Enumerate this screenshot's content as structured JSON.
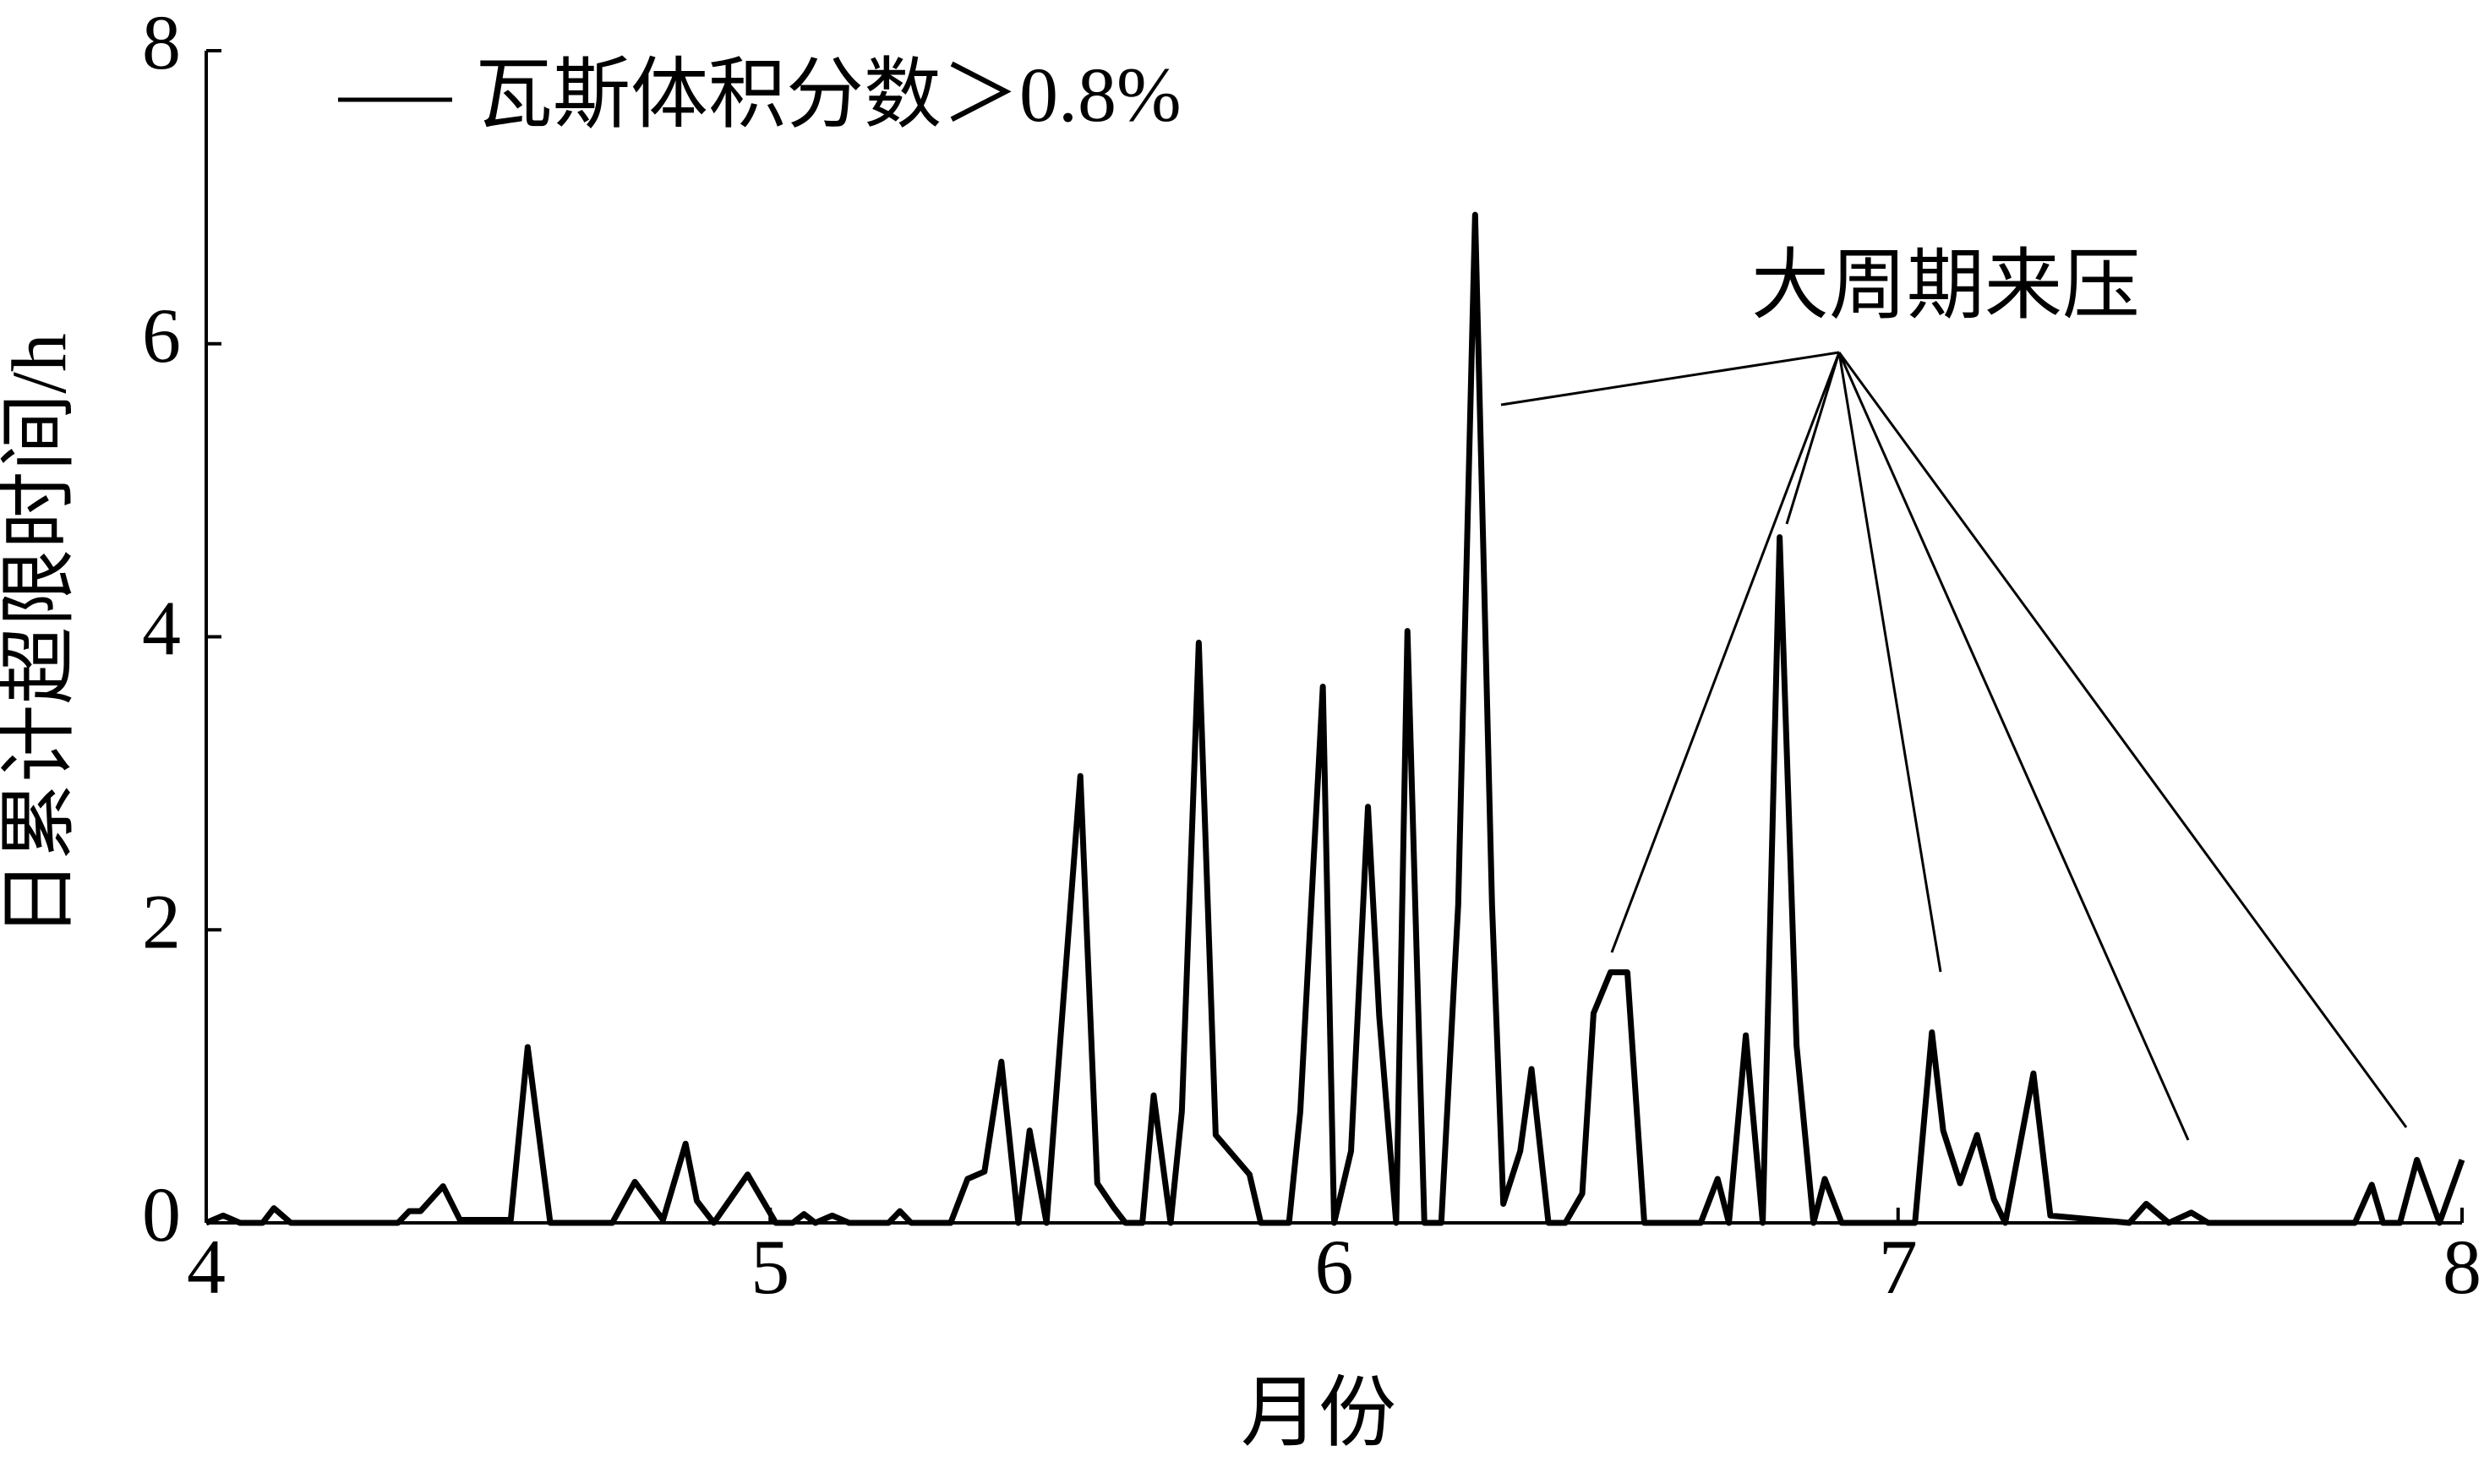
{
  "chart_data": {
    "type": "line",
    "ylabel": "日累计超限时间/h",
    "xlabel": "月份",
    "annotation": "大周期来压",
    "xlim": [
      4,
      8
    ],
    "ylim": [
      0,
      8
    ],
    "xticks": [
      4,
      5,
      6,
      7,
      8
    ],
    "yticks": [
      0,
      2,
      4,
      6,
      8
    ],
    "x": [
      4.0,
      4.03,
      4.06,
      4.1,
      4.12,
      4.15,
      4.34,
      4.36,
      4.38,
      4.42,
      4.45,
      4.54,
      4.57,
      4.61,
      4.72,
      4.76,
      4.81,
      4.85,
      4.87,
      4.9,
      4.96,
      5.01,
      5.04,
      5.06,
      5.08,
      5.11,
      5.14,
      5.21,
      5.23,
      5.25,
      5.32,
      5.35,
      5.38,
      5.41,
      5.44,
      5.46,
      5.49,
      5.55,
      5.58,
      5.61,
      5.63,
      5.66,
      5.68,
      5.71,
      5.73,
      5.76,
      5.79,
      5.85,
      5.87,
      5.92,
      5.94,
      5.98,
      6.0,
      6.03,
      6.06,
      6.08,
      6.11,
      6.13,
      6.16,
      6.19,
      6.22,
      6.25,
      6.28,
      6.3,
      6.33,
      6.35,
      6.38,
      6.41,
      6.44,
      6.46,
      6.49,
      6.52,
      6.55,
      6.65,
      6.68,
      6.7,
      6.73,
      6.76,
      6.79,
      6.82,
      6.85,
      6.87,
      6.9,
      7.03,
      7.06,
      7.08,
      7.11,
      7.14,
      7.17,
      7.19,
      7.24,
      7.27,
      7.41,
      7.44,
      7.48,
      7.52,
      7.55,
      7.81,
      7.84,
      7.86,
      7.89,
      7.92,
      7.96,
      8.0
    ],
    "series": [
      {
        "name": "瓦斯体积分数＞0.8%",
        "color": "#000000",
        "values": [
          0,
          0.05,
          0,
          0,
          0.1,
          0,
          0,
          0.08,
          0.08,
          0.25,
          0.02,
          0.02,
          1.2,
          0,
          0,
          0.28,
          0.02,
          0.54,
          0.15,
          0,
          0.33,
          0,
          0,
          0.06,
          0,
          0.05,
          0,
          0,
          0.08,
          0,
          0,
          0.3,
          0.35,
          1.1,
          0,
          0.63,
          0,
          3.05,
          0.27,
          0.1,
          0,
          0,
          0.87,
          0,
          0.76,
          3.96,
          0.6,
          0.33,
          0,
          0,
          0.76,
          3.66,
          0,
          0.49,
          2.84,
          1.41,
          0,
          4.04,
          0,
          0,
          2.17,
          6.88,
          2.17,
          0.13,
          0.49,
          1.05,
          0,
          0,
          0.2,
          1.43,
          1.71,
          1.71,
          0,
          0,
          0.3,
          0,
          1.28,
          0,
          4.68,
          1.21,
          0,
          0.3,
          0,
          0,
          1.3,
          0.63,
          0.27,
          0.6,
          0.16,
          0,
          1.02,
          0.05,
          0,
          0.13,
          0,
          0.07,
          0,
          0,
          0.26,
          0,
          0,
          0.43,
          0,
          0.43
        ]
      }
    ]
  }
}
